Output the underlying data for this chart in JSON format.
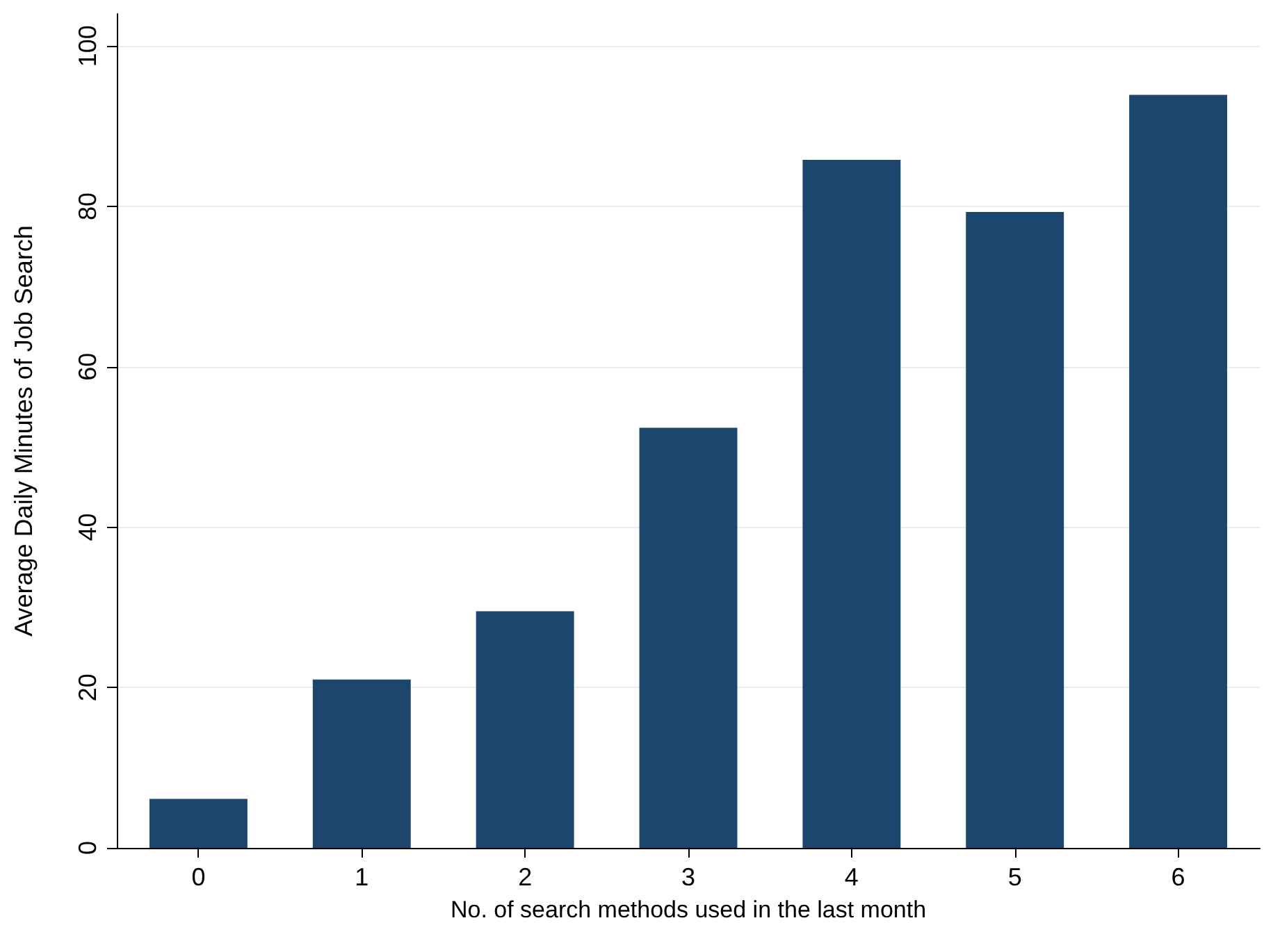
{
  "chart_data": {
    "type": "bar",
    "xlabel": "No. of search methods used in the last month",
    "ylabel": "Average Daily Minutes of Job Search",
    "categories": [
      "0",
      "1",
      "2",
      "3",
      "4",
      "5",
      "6"
    ],
    "values": [
      6.1,
      21.0,
      29.5,
      52.4,
      85.8,
      79.3,
      93.9
    ],
    "color": "#1c466e",
    "ylim": [
      0,
      104
    ],
    "yticks": [
      0,
      20,
      40,
      60,
      80,
      100
    ],
    "grid": "y"
  }
}
